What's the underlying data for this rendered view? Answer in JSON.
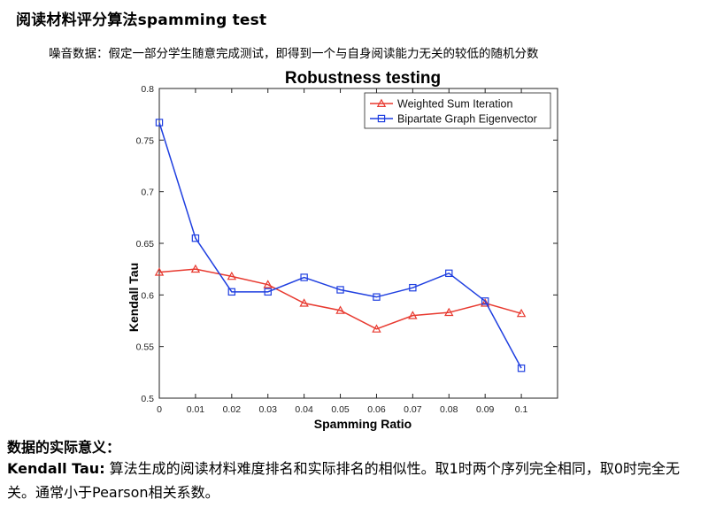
{
  "page": {
    "title": "阅读材料评分算法spamming test",
    "subtitle": "噪音数据：假定一部分学生随意完成测试，即得到一个与自身阅读能力无关的较低的随机分数"
  },
  "notes": {
    "heading": "数据的实际意义：",
    "term": "Kendall Tau:",
    "definition": " 算法生成的阅读材料难度排名和实际排名的相似性。取1时两个序列完全相同，取0时完全无关。通常小于Pearson相关系数。"
  },
  "chart_data": {
    "type": "line",
    "title": "Robustness testing",
    "xlabel": "Spamming Ratio",
    "ylabel": "Kendall Tau",
    "xlim": [
      0,
      0.11
    ],
    "ylim": [
      0.5,
      0.8
    ],
    "xticks": [
      0,
      0.01,
      0.02,
      0.03,
      0.04,
      0.05,
      0.06,
      0.07,
      0.08,
      0.09,
      0.1
    ],
    "xtick_labels": [
      "0",
      "0.01",
      "0.02",
      "0.03",
      "0.04",
      "0.05",
      "0.06",
      "0.07",
      "0.08",
      "0.09",
      "0.1"
    ],
    "yticks": [
      0.5,
      0.55,
      0.6,
      0.65,
      0.7,
      0.75,
      0.8
    ],
    "ytick_labels": [
      "0.5",
      "0.55",
      "0.6",
      "0.65",
      "0.7",
      "0.75",
      "0.8"
    ],
    "grid": false,
    "legend_position": "top-right",
    "x": [
      0,
      0.01,
      0.02,
      0.03,
      0.04,
      0.05,
      0.06,
      0.07,
      0.08,
      0.09,
      0.1
    ],
    "series": [
      {
        "name": "Weighted Sum Iteration",
        "color": "#e8392f",
        "marker": "triangle",
        "values": [
          0.622,
          0.625,
          0.618,
          0.61,
          0.592,
          0.585,
          0.567,
          0.58,
          0.583,
          0.592,
          0.582
        ]
      },
      {
        "name": "Bipartate Graph Eigenvector",
        "color": "#1f3fe0",
        "marker": "square",
        "values": [
          0.767,
          0.655,
          0.603,
          0.603,
          0.617,
          0.605,
          0.598,
          0.607,
          0.621,
          0.594,
          0.529
        ]
      }
    ]
  }
}
